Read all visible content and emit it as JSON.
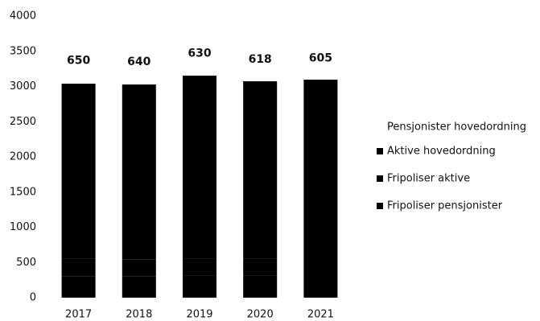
{
  "chart_data": {
    "type": "stacked-bar",
    "categories": [
      "2017",
      "2018",
      "2019",
      "2020",
      "2021"
    ],
    "series": [
      {
        "name": "Fripoliser pensjonister",
        "color": "#000000",
        "values": [
          300,
          300,
          310,
          310,
          320
        ]
      },
      {
        "name": "Fripoliser aktive",
        "color": "#000000",
        "values": [
          250,
          240,
          240,
          240,
          240
        ]
      },
      {
        "name": "Aktive hovedordning",
        "color": "#000000",
        "values": [
          2490,
          2489,
          2604,
          2524,
          2537
        ]
      },
      {
        "name": "Pensjonister hovedordning",
        "color": "#ffffff",
        "values": [
          650,
          640,
          630,
          618,
          605
        ],
        "labels": true
      }
    ],
    "ylim": [
      0,
      4000
    ],
    "yticks": [
      0,
      500,
      1000,
      1500,
      2000,
      2500,
      3000,
      3500,
      4000
    ]
  }
}
